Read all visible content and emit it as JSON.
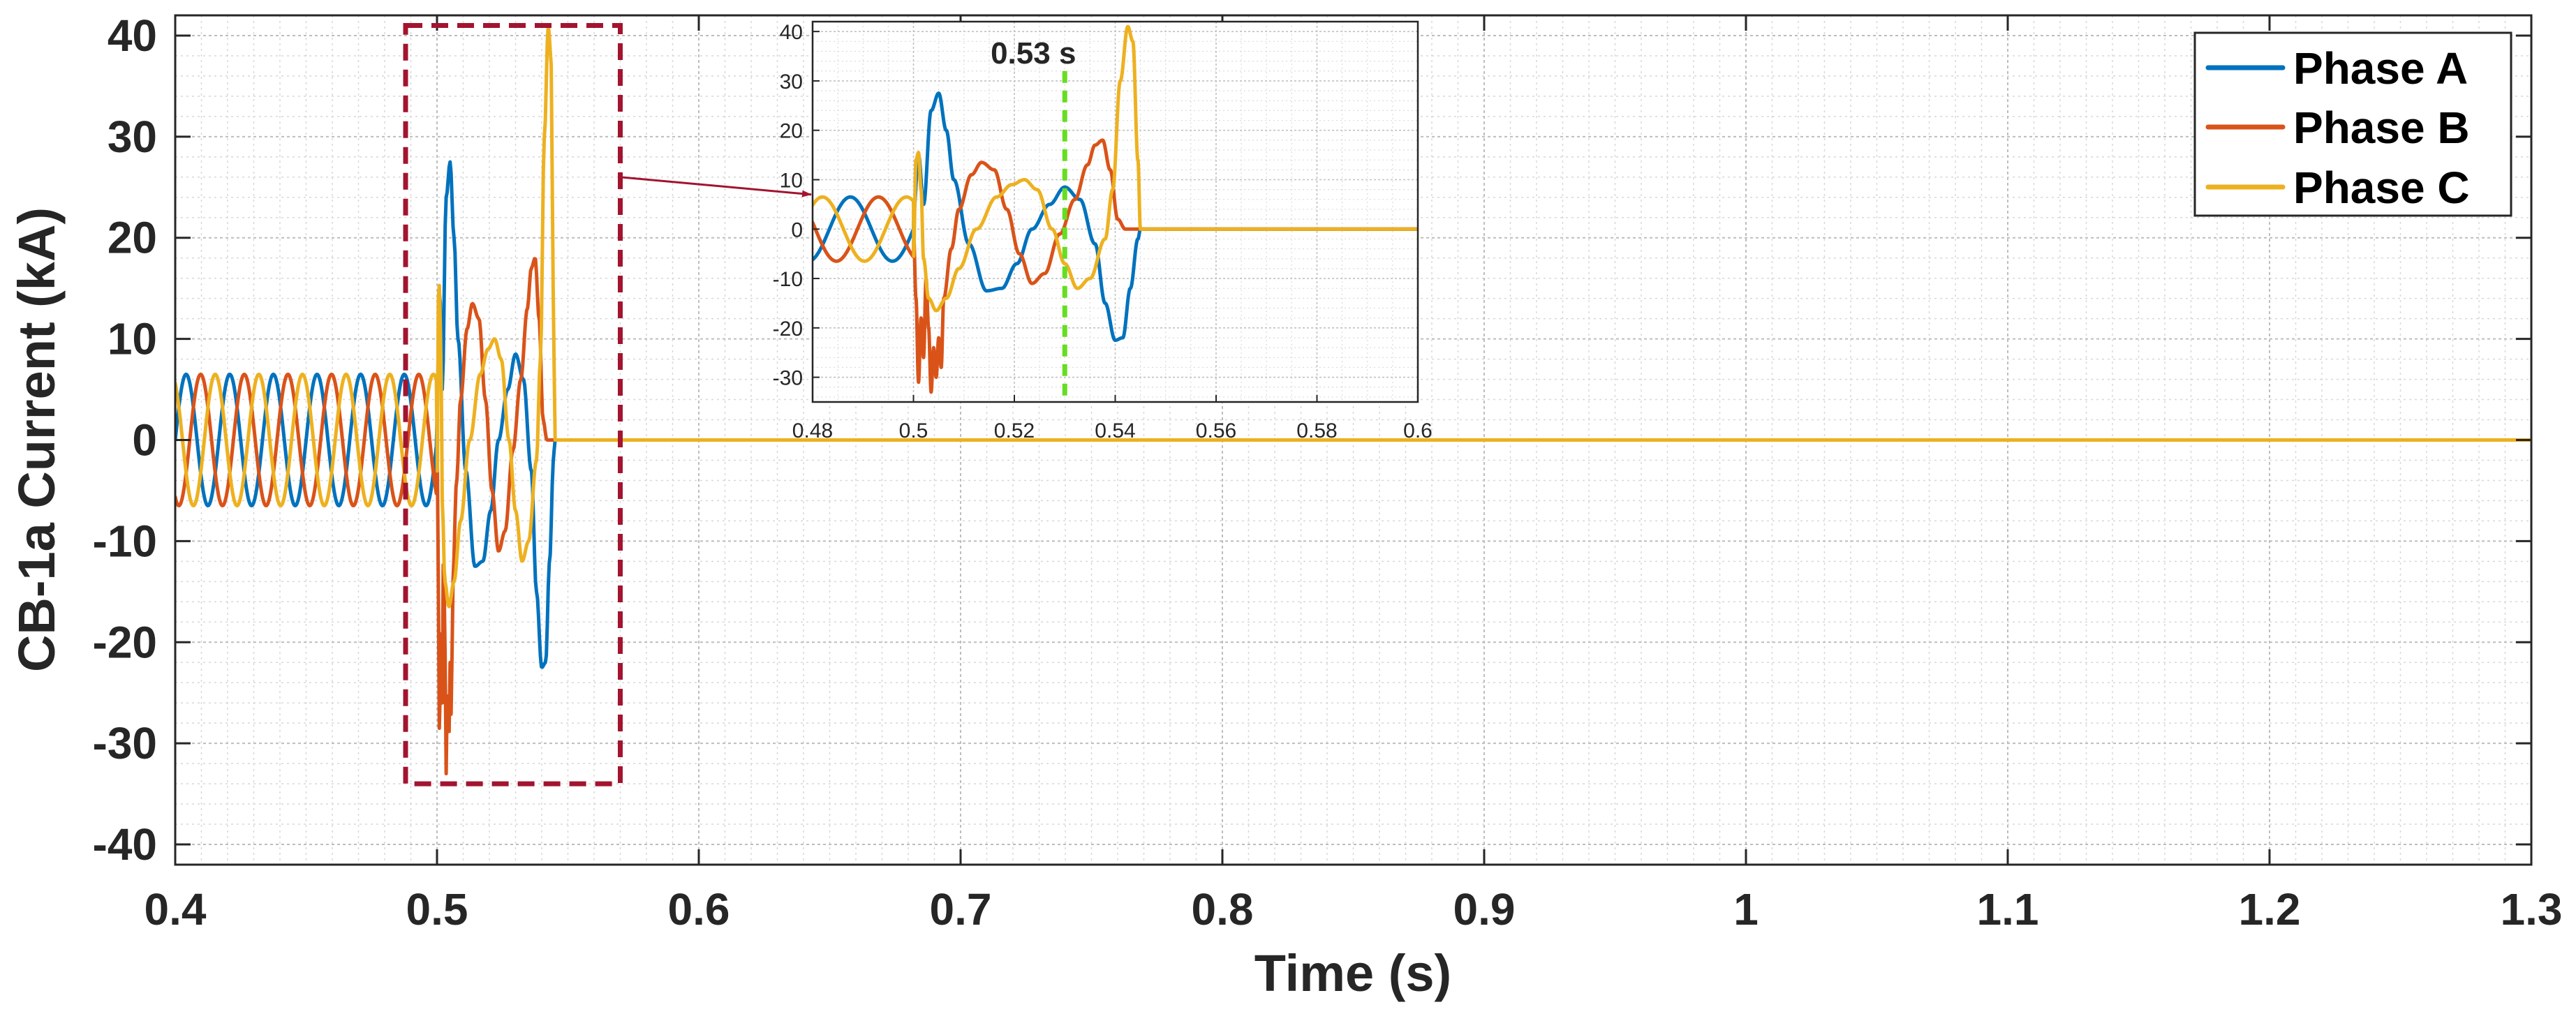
{
  "colors": {
    "phase_a": "#0072BD",
    "phase_b": "#D95319",
    "phase_c": "#EDB120",
    "zoom_box": "#A2142F",
    "annotation": "#66DD22",
    "grid": "#c8c8c8",
    "axis": "#262626"
  },
  "chart_data": {
    "type": "line",
    "title": "",
    "xlabel": "Time (s)",
    "ylabel": "CB-1a Current (kA)",
    "xlim": [
      0.4,
      1.3
    ],
    "ylim": [
      -42,
      42
    ],
    "xticks": [
      0.4,
      0.5,
      0.6,
      0.7,
      0.8,
      0.9,
      1.0,
      1.1,
      1.2,
      1.3
    ],
    "xtick_labels": [
      "0.4",
      "0.5",
      "0.6",
      "0.7",
      "0.8",
      "0.9",
      "1",
      "1.1",
      "1.2",
      "1.3"
    ],
    "yticks": [
      40,
      30,
      20,
      10,
      0,
      -10,
      -20,
      -30,
      -40
    ],
    "ytick_labels": [
      "40",
      "30",
      "20",
      "10",
      "0",
      "-10",
      "-20",
      "-30",
      "-40"
    ],
    "grid": true,
    "minor_grid": true,
    "legend": {
      "placement": "top-right",
      "entries": [
        "Phase A",
        "Phase B",
        "Phase C"
      ]
    },
    "series": [
      {
        "name": "Phase A",
        "prefault": {
          "amplitude_kA": 6.5,
          "frequency_hz": 60,
          "phase_deg": 0
        },
        "fault_points": [
          [
            0.5,
            3.0
          ],
          [
            0.501,
            15.0
          ],
          [
            0.502,
            5.0
          ],
          [
            0.5035,
            24.0
          ],
          [
            0.505,
            27.5
          ],
          [
            0.5065,
            20.0
          ],
          [
            0.508,
            10.0
          ],
          [
            0.511,
            -3.0
          ],
          [
            0.5145,
            -12.5
          ],
          [
            0.5175,
            -12.0
          ],
          [
            0.5205,
            -7.0
          ],
          [
            0.5235,
            0.0
          ],
          [
            0.527,
            5.0
          ],
          [
            0.53,
            8.5
          ],
          [
            0.533,
            6.0
          ],
          [
            0.536,
            -3.0
          ],
          [
            0.538,
            -15.0
          ],
          [
            0.54,
            -22.5
          ],
          [
            0.5415,
            -22.0
          ],
          [
            0.543,
            -12.0
          ],
          [
            0.5445,
            -2.0
          ],
          [
            0.545,
            0.0
          ],
          [
            0.546,
            0.0
          ]
        ]
      },
      {
        "name": "Phase B",
        "prefault": {
          "amplitude_kA": 6.5,
          "frequency_hz": 60,
          "phase_deg": -120
        },
        "fault_points": [
          [
            0.5,
            0.0
          ],
          [
            0.5005,
            -14.0
          ],
          [
            0.501,
            -31.0
          ],
          [
            0.5015,
            -18.0
          ],
          [
            0.502,
            -26.0
          ],
          [
            0.5025,
            -10.0
          ],
          [
            0.503,
            -20.0
          ],
          [
            0.5035,
            -33.0
          ],
          [
            0.504,
            -24.0
          ],
          [
            0.5045,
            -30.0
          ],
          [
            0.505,
            -22.0
          ],
          [
            0.5055,
            -28.0
          ],
          [
            0.506,
            -14.0
          ],
          [
            0.5075,
            -4.0
          ],
          [
            0.509,
            4.0
          ],
          [
            0.5115,
            11.0
          ],
          [
            0.5135,
            13.5
          ],
          [
            0.516,
            12.0
          ],
          [
            0.5185,
            4.0
          ],
          [
            0.521,
            -5.0
          ],
          [
            0.5235,
            -11.0
          ],
          [
            0.526,
            -9.0
          ],
          [
            0.529,
            -1.0
          ],
          [
            0.532,
            6.0
          ],
          [
            0.5345,
            13.0
          ],
          [
            0.536,
            17.0
          ],
          [
            0.5375,
            18.0
          ],
          [
            0.539,
            12.0
          ],
          [
            0.5405,
            2.0
          ],
          [
            0.542,
            0.0
          ],
          [
            0.546,
            0.0
          ]
        ]
      },
      {
        "name": "Phase C",
        "prefault": {
          "amplitude_kA": 6.5,
          "frequency_hz": 60,
          "phase_deg": 120
        },
        "fault_points": [
          [
            0.5,
            -6.0
          ],
          [
            0.5005,
            14.0
          ],
          [
            0.501,
            15.5
          ],
          [
            0.5015,
            8.0
          ],
          [
            0.502,
            -6.0
          ],
          [
            0.503,
            -14.0
          ],
          [
            0.5045,
            -16.5
          ],
          [
            0.5065,
            -14.0
          ],
          [
            0.509,
            -8.0
          ],
          [
            0.5125,
            0.0
          ],
          [
            0.5165,
            6.5
          ],
          [
            0.5195,
            9.0
          ],
          [
            0.522,
            10.0
          ],
          [
            0.5245,
            8.0
          ],
          [
            0.5275,
            0.0
          ],
          [
            0.53,
            -7.0
          ],
          [
            0.5325,
            -12.0
          ],
          [
            0.535,
            -10.0
          ],
          [
            0.538,
            -2.0
          ],
          [
            0.5395,
            8.0
          ],
          [
            0.541,
            30.0
          ],
          [
            0.5425,
            41.0
          ],
          [
            0.5435,
            38.0
          ],
          [
            0.5445,
            14.0
          ],
          [
            0.545,
            0.0
          ],
          [
            0.546,
            0.0
          ]
        ]
      }
    ],
    "post_clear_value": 0,
    "zoom_box": {
      "x_range": [
        0.488,
        0.57
      ],
      "y_range": [
        -34,
        41
      ]
    },
    "inset": {
      "xlim": [
        0.48,
        0.6
      ],
      "ylim": [
        -35,
        42
      ],
      "xticks": [
        0.48,
        0.5,
        0.52,
        0.54,
        0.56,
        0.58,
        0.6
      ],
      "xtick_labels": [
        "0.48",
        "0.5",
        "0.52",
        "0.54",
        "0.56",
        "0.58",
        "0.6"
      ],
      "yticks": [
        40,
        30,
        20,
        10,
        0,
        -10,
        -20,
        -30
      ],
      "ytick_labels": [
        "40",
        "30",
        "20",
        "10",
        "0",
        "-10",
        "-20",
        "-30"
      ],
      "marker_x": 0.53,
      "marker_label": "0.53 s"
    }
  }
}
